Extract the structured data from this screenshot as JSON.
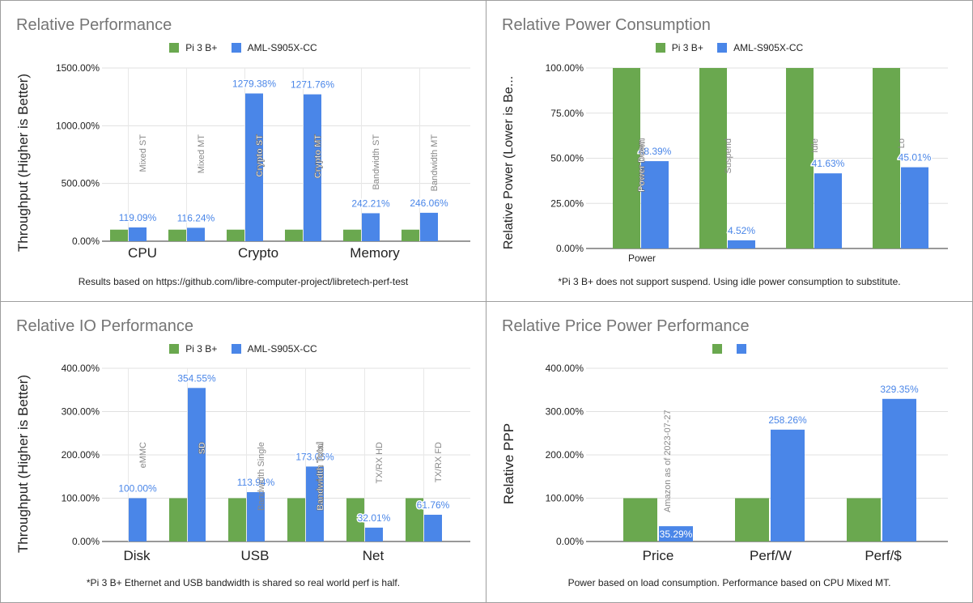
{
  "colors": {
    "series1": "#6aa84f",
    "series2": "#4a86e8",
    "grid": "#e0e0e0",
    "axis": "#333333",
    "value_label": "#4a86e8",
    "annotation": "#888888"
  },
  "chart_data": [
    {
      "type": "bar",
      "title": "Relative Performance",
      "ylabel": "Throughput (Higher is Better)",
      "ylim": [
        0,
        1500
      ],
      "yticks": [
        "0.00%",
        "500.00%",
        "1000.00%",
        "1500.00%"
      ],
      "ytick_values": [
        0,
        500,
        1000,
        1500
      ],
      "legend": [
        "Pi 3 B+",
        "AML-S905X-CC"
      ],
      "groups": [
        "CPU",
        "Crypto",
        "Memory"
      ],
      "categories": [
        "Mixed ST",
        "Mixed MT",
        "Crypto ST",
        "Crypto MT",
        "Bandwidth ST",
        "Bandwidth MT"
      ],
      "series": [
        {
          "name": "Pi 3 B+",
          "values": [
            100,
            100,
            100,
            100,
            100,
            100
          ]
        },
        {
          "name": "AML-S905X-CC",
          "values": [
            119.09,
            116.24,
            1279.38,
            1271.76,
            242.21,
            246.06
          ]
        }
      ],
      "data_labels": [
        "119.09%",
        "116.24%",
        "1279.38%",
        "1271.76%",
        "242.21%",
        "246.06%"
      ],
      "footnote": "Results based on https://github.com/libre-computer-project/libretech-perf-test"
    },
    {
      "type": "bar",
      "title": "Relative Power Consumption",
      "ylabel": "Relative Power (Lower is Be...",
      "ylim": [
        0,
        100
      ],
      "yticks": [
        "0.00%",
        "25.00%",
        "50.00%",
        "75.00%",
        "100.00%"
      ],
      "ytick_values": [
        0,
        25,
        50,
        75,
        100
      ],
      "legend": [
        "Pi 3 B+",
        "AML-S905X-CC"
      ],
      "groups": [
        "Power"
      ],
      "categories": [
        "Power Down",
        "Suspend",
        "Idle",
        "Load"
      ],
      "category_labels_shown": [
        "Power Down",
        "Suspend",
        "Idle",
        "Lo"
      ],
      "series": [
        {
          "name": "Pi 3 B+",
          "values": [
            100,
            100,
            100,
            100
          ]
        },
        {
          "name": "AML-S905X-CC",
          "values": [
            48.39,
            4.52,
            41.63,
            45.01
          ]
        }
      ],
      "data_labels": [
        "48.39%",
        "4.52%",
        "41.63%",
        "45.01%"
      ],
      "footnote": "*Pi 3 B+ does not support suspend. Using idle power consumption to substitute."
    },
    {
      "type": "bar",
      "title": "Relative IO Performance",
      "ylabel": "Throughput (Higher is Better)",
      "ylim": [
        0,
        400
      ],
      "yticks": [
        "0.00%",
        "100.00%",
        "200.00%",
        "300.00%",
        "400.00%"
      ],
      "ytick_values": [
        0,
        100,
        200,
        300,
        400
      ],
      "legend": [
        "Pi 3 B+",
        "AML-S905X-CC"
      ],
      "groups": [
        "Disk",
        "USB",
        "Net"
      ],
      "categories": [
        "eMMC",
        "SD",
        "Bandwidth Single",
        "Bandwidth Total",
        "TX/RX HD",
        "TX/RX FD"
      ],
      "series": [
        {
          "name": "Pi 3 B+",
          "values": [
            null,
            100,
            100,
            100,
            100,
            100
          ]
        },
        {
          "name": "AML-S905X-CC",
          "values": [
            100,
            354.55,
            113.94,
            173.06,
            32.01,
            61.76
          ]
        }
      ],
      "data_labels": [
        "100.00%",
        "354.55%",
        "113.94%",
        "173.06%",
        "32.01%",
        "61.76%"
      ],
      "footnote": "*Pi 3 B+ Ethernet and USB bandwidth is shared so real world perf is half."
    },
    {
      "type": "bar",
      "title": "Relative Price Power Performance",
      "ylabel": "Relative PPP",
      "ylim": [
        0,
        400
      ],
      "yticks": [
        "0.00%",
        "100.00%",
        "200.00%",
        "300.00%",
        "400.00%"
      ],
      "ytick_values": [
        0,
        100,
        200,
        300,
        400
      ],
      "legend": [
        "",
        ""
      ],
      "categories": [
        "Price",
        "Perf/W",
        "Perf/$"
      ],
      "series": [
        {
          "name": "",
          "values": [
            100,
            100,
            100
          ]
        },
        {
          "name": "",
          "values": [
            35.29,
            258.26,
            329.35
          ]
        }
      ],
      "data_labels": [
        "35.29%",
        "258.26%",
        "329.35%"
      ],
      "annotation": "Amazon as of 2023-07-27",
      "footnote": "Power based on load consumption. Performance based on CPU Mixed MT."
    }
  ]
}
